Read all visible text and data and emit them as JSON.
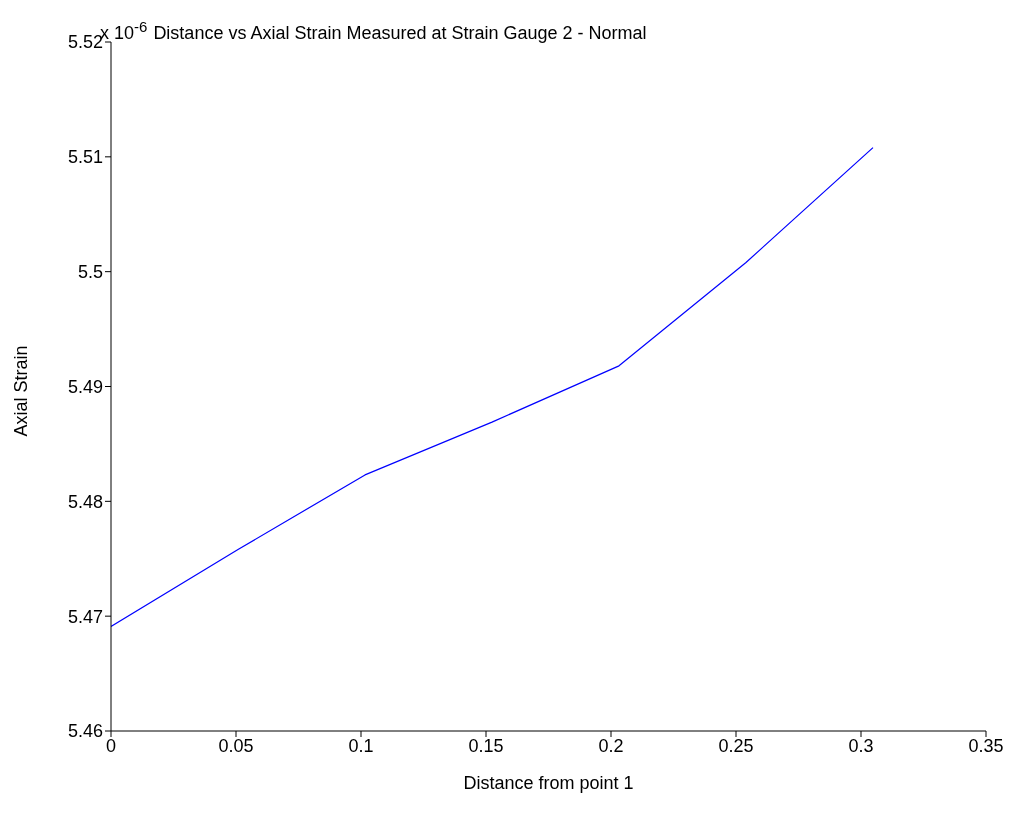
{
  "chart_data": {
    "type": "line",
    "title": "Distance vs Axial Strain Measured at Strain Gauge 2 - Normal",
    "xlabel": "Distance from point 1",
    "ylabel": "Axial Strain",
    "annotations": [
      "x 10$^{-6}$"
    ],
    "x": [
      0,
      0.0508,
      0.1016,
      0.1524,
      0.2032,
      0.254,
      0.3048
    ],
    "series": [
      {
        "color": "#0000ff",
        "values": [
          5.4691,
          5.4758,
          5.4823,
          5.4869,
          5.4918,
          5.5008,
          5.5108
        ]
      }
    ],
    "xlim": [
      0,
      0.35
    ],
    "xticks": [
      0,
      0.05,
      0.1,
      0.15,
      0.2,
      0.25,
      0.3,
      0.35
    ],
    "ylim": [
      5.46,
      5.52
    ],
    "yticks": [
      5.46,
      5.47,
      5.48,
      5.49,
      5.5,
      5.51,
      5.52
    ],
    "grid": false,
    "legend": false,
    "marker": "none",
    "line_style": "solid"
  }
}
